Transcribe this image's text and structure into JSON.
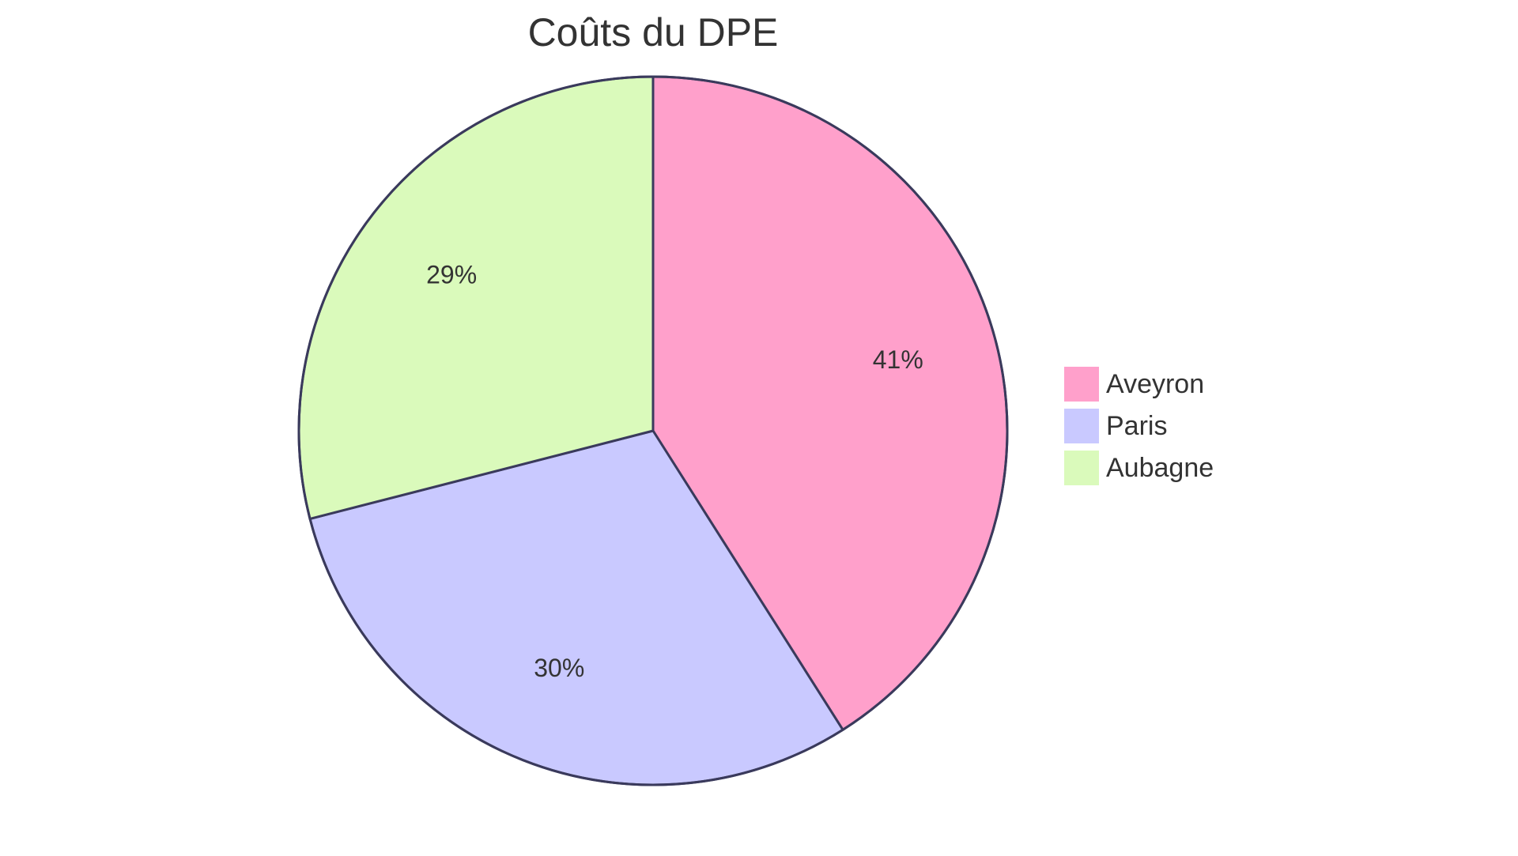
{
  "chart_data": {
    "type": "pie",
    "title": "Coûts du DPE",
    "slices": [
      {
        "label": "Aveyron",
        "value": 41,
        "display": "41%",
        "color": "#ffa0cb"
      },
      {
        "label": "Paris",
        "value": 30,
        "display": "30%",
        "color": "#c9c9ff"
      },
      {
        "label": "Aubagne",
        "value": 29,
        "display": "29%",
        "color": "#dafabb"
      }
    ],
    "legend_position": "right",
    "start_angle": "top, clockwise",
    "outline_color": "#3a3a5c",
    "text_color": "#333333"
  }
}
